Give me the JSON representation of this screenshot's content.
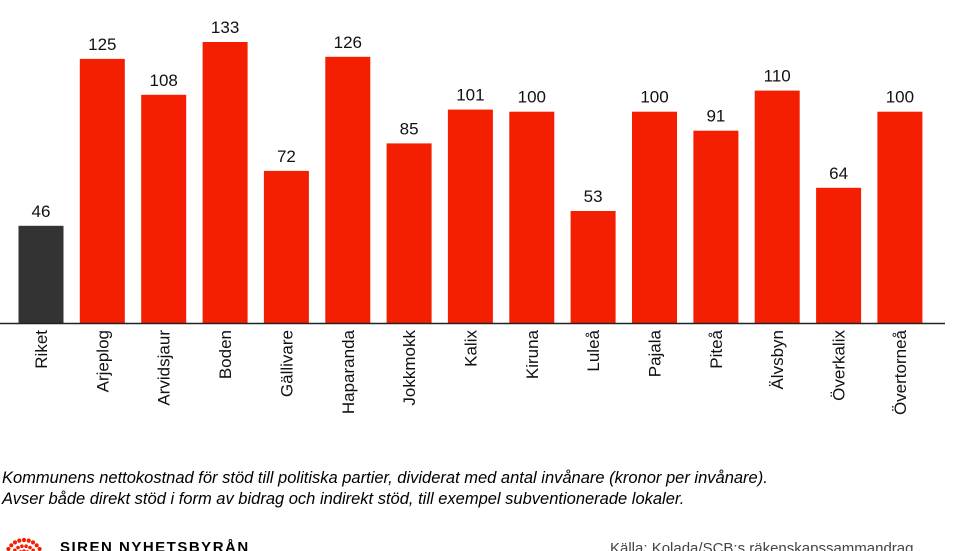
{
  "chart_data": {
    "type": "bar",
    "categories": [
      "Riket",
      "Arjeplog",
      "Arvidsjaur",
      "Boden",
      "Gällivare",
      "Haparanda",
      "Jokkmokk",
      "Kalix",
      "Kiruna",
      "Luleå",
      "Pajala",
      "Piteå",
      "Älvsbyn",
      "Överkalix",
      "Övertorneå"
    ],
    "values": [
      46,
      125,
      108,
      133,
      72,
      126,
      85,
      101,
      100,
      53,
      100,
      91,
      110,
      64,
      100
    ],
    "ylim": [
      0,
      140
    ],
    "grid": false,
    "colors": {
      "highlight": "#333333",
      "bars": "#f41e00"
    },
    "highlight_category": "Riket"
  },
  "caption": {
    "line1": "Kommunens nettokostnad för stöd till politiska partier, dividerat med antal invånare (kronor per invånare).",
    "line2": "Avser både direkt stöd i form av bidrag och indirekt stöd, till exempel subventionerade lokaler."
  },
  "footer": {
    "logo_text": "SIREN NYHETSBYRÅN",
    "logo_icon": "siren-logo-icon",
    "source": "Källa: Kolada/SCB:s räkenskapssammandrag"
  }
}
